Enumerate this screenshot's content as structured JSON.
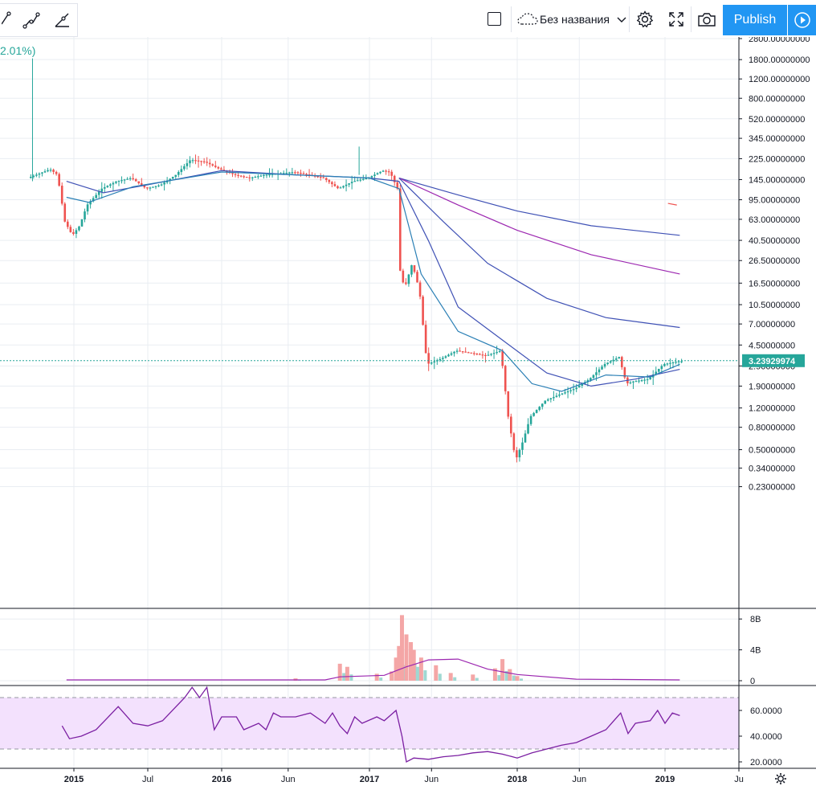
{
  "toolbar": {
    "layout_name": "Без названия",
    "publish_label": "Publish",
    "change_pct": "2.01%)",
    "icons": [
      "trend-line-icon",
      "path-icon",
      "ray-icon",
      "square-icon",
      "cloud-icon",
      "chevron-down-icon",
      "gear-icon",
      "fullscreen-icon",
      "camera-icon",
      "play-icon"
    ]
  },
  "colors": {
    "up": "#26a69a",
    "down": "#ef5350",
    "accent": "#2196f3",
    "ma_blue": "#3f51b5",
    "ma_purple": "#9c27b0",
    "rsi_fill": "#f3e1fd",
    "last_price_bg": "#26a69a"
  },
  "chart_data": [
    {
      "type": "candlestick",
      "scale": "log",
      "price_ticks": [
        "2800.00000000",
        "1800.00000000",
        "1200.00000000",
        "800.00000000",
        "520.00000000",
        "345.00000000",
        "225.00000000",
        "145.00000000",
        "95.00000000",
        "63.00000000",
        "40.50000000",
        "26.50000000",
        "16.50000000",
        "10.50000000",
        "7.00000000",
        "4.50000000",
        "2.90000000",
        "1.90000000",
        "1.20000000",
        "0.80000000",
        "0.50000000",
        "0.34000000",
        "0.23000000"
      ],
      "time_ticks": [
        "2015",
        "Jul",
        "2016",
        "Jun",
        "2017",
        "Jun",
        "2018",
        "Jun",
        "2019",
        "Ju"
      ],
      "last_price": "3.23929974",
      "ylim": [
        0.2,
        3000
      ],
      "grid": true,
      "price_series": [
        [
          2014.7,
          150
        ],
        [
          2014.85,
          180
        ],
        [
          2014.9,
          160
        ],
        [
          2014.95,
          60
        ],
        [
          2015.0,
          45
        ],
        [
          2015.05,
          55
        ],
        [
          2015.1,
          85
        ],
        [
          2015.2,
          120
        ],
        [
          2015.3,
          140
        ],
        [
          2015.4,
          150
        ],
        [
          2015.5,
          120
        ],
        [
          2015.6,
          130
        ],
        [
          2015.7,
          160
        ],
        [
          2015.8,
          220
        ],
        [
          2015.9,
          210
        ],
        [
          2016.0,
          180
        ],
        [
          2016.1,
          160
        ],
        [
          2016.2,
          150
        ],
        [
          2016.3,
          160
        ],
        [
          2016.4,
          165
        ],
        [
          2016.5,
          170
        ],
        [
          2016.6,
          160
        ],
        [
          2016.7,
          150
        ],
        [
          2016.8,
          120
        ],
        [
          2016.9,
          140
        ],
        [
          2017.0,
          150
        ],
        [
          2017.1,
          175
        ],
        [
          2017.15,
          170
        ],
        [
          2017.2,
          120
        ],
        [
          2017.22,
          20
        ],
        [
          2017.25,
          15
        ],
        [
          2017.3,
          25
        ],
        [
          2017.35,
          14
        ],
        [
          2017.4,
          3.0
        ],
        [
          2017.5,
          3.4
        ],
        [
          2017.6,
          4.0
        ],
        [
          2017.7,
          3.8
        ],
        [
          2017.8,
          3.6
        ],
        [
          2017.9,
          4.0
        ],
        [
          2017.95,
          1.0
        ],
        [
          2018.0,
          0.4
        ],
        [
          2018.05,
          0.6
        ],
        [
          2018.1,
          1.0
        ],
        [
          2018.2,
          1.4
        ],
        [
          2018.3,
          1.6
        ],
        [
          2018.4,
          1.8
        ],
        [
          2018.5,
          2.2
        ],
        [
          2018.6,
          3.0
        ],
        [
          2018.7,
          3.5
        ],
        [
          2018.75,
          2.0
        ],
        [
          2018.8,
          2.1
        ],
        [
          2018.9,
          2.2
        ],
        [
          2019.0,
          3.0
        ],
        [
          2019.1,
          3.2
        ]
      ],
      "moving_averages": [
        {
          "color": "#3f51b5",
          "points": [
            [
              2017.2,
              150
            ],
            [
              2017.6,
              105
            ],
            [
              2018.0,
              75
            ],
            [
              2018.5,
              55
            ],
            [
              2019.1,
              45
            ]
          ]
        },
        {
          "color": "#9c27b0",
          "points": [
            [
              2017.2,
              150
            ],
            [
              2017.6,
              85
            ],
            [
              2018.0,
              50
            ],
            [
              2018.5,
              30
            ],
            [
              2019.1,
              20
            ]
          ]
        },
        {
          "color": "#3f51b5",
          "points": [
            [
              2017.2,
              150
            ],
            [
              2017.5,
              60
            ],
            [
              2017.8,
              25
            ],
            [
              2018.2,
              12
            ],
            [
              2018.6,
              8
            ],
            [
              2019.1,
              6.5
            ]
          ]
        },
        {
          "color": "#3f51b5",
          "points": [
            [
              2014.95,
              140
            ],
            [
              2015.2,
              110
            ],
            [
              2015.5,
              130
            ],
            [
              2016.0,
              175
            ],
            [
              2016.5,
              160
            ],
            [
              2017.0,
              150
            ],
            [
              2017.2,
              140
            ],
            [
              2017.4,
              40
            ],
            [
              2017.6,
              10
            ],
            [
              2017.9,
              5
            ],
            [
              2018.2,
              2.5
            ],
            [
              2018.5,
              1.9
            ],
            [
              2018.8,
              2.2
            ],
            [
              2019.1,
              2.7
            ]
          ]
        },
        {
          "color": "#2a7fb5",
          "points": [
            [
              2014.95,
              100
            ],
            [
              2015.1,
              90
            ],
            [
              2015.4,
              125
            ],
            [
              2016.0,
              170
            ],
            [
              2016.5,
              160
            ],
            [
              2017.0,
              150
            ],
            [
              2017.2,
              120
            ],
            [
              2017.35,
              20
            ],
            [
              2017.6,
              6
            ],
            [
              2017.9,
              4
            ],
            [
              2018.1,
              2
            ],
            [
              2018.3,
              1.7
            ],
            [
              2018.6,
              2.4
            ],
            [
              2018.9,
              2.3
            ],
            [
              2019.1,
              3.0
            ]
          ]
        }
      ],
      "extra_segment": [
        [
          2019.02,
          88
        ],
        [
          2019.08,
          85
        ]
      ]
    },
    {
      "type": "bar",
      "name": "volume",
      "ticks": [
        "8B",
        "4B",
        "0"
      ],
      "ylim": [
        0,
        9
      ],
      "bars": [
        [
          2016.5,
          0.3
        ],
        [
          2016.8,
          2.2
        ],
        [
          2016.85,
          1.8
        ],
        [
          2017.05,
          0.9
        ],
        [
          2017.15,
          1.2
        ],
        [
          2017.18,
          3.0
        ],
        [
          2017.2,
          4.5
        ],
        [
          2017.22,
          8.5
        ],
        [
          2017.25,
          6.0
        ],
        [
          2017.28,
          5.0
        ],
        [
          2017.3,
          4.0
        ],
        [
          2017.35,
          3.0
        ],
        [
          2017.45,
          2.0
        ],
        [
          2017.55,
          1.0
        ],
        [
          2017.7,
          0.8
        ],
        [
          2017.85,
          1.6
        ],
        [
          2017.9,
          2.8
        ],
        [
          2017.95,
          1.5
        ],
        [
          2018.0,
          0.6
        ]
      ],
      "moving_average": [
        [
          2014.95,
          0.1
        ],
        [
          2016.7,
          0.1
        ],
        [
          2016.8,
          0.5
        ],
        [
          2017.1,
          0.7
        ],
        [
          2017.25,
          1.8
        ],
        [
          2017.4,
          2.7
        ],
        [
          2017.6,
          2.8
        ],
        [
          2017.8,
          1.5
        ],
        [
          2018.0,
          0.8
        ],
        [
          2018.4,
          0.2
        ],
        [
          2019.1,
          0.1
        ]
      ]
    },
    {
      "type": "line",
      "name": "rsi",
      "ticks": [
        "60.0000",
        "40.0000",
        "20.0000"
      ],
      "ylim": [
        15,
        80
      ],
      "bands": [
        70,
        30
      ],
      "values": [
        [
          2014.92,
          48
        ],
        [
          2014.97,
          38
        ],
        [
          2015.05,
          40
        ],
        [
          2015.15,
          45
        ],
        [
          2015.3,
          63
        ],
        [
          2015.4,
          50
        ],
        [
          2015.5,
          48
        ],
        [
          2015.6,
          52
        ],
        [
          2015.65,
          58
        ],
        [
          2015.75,
          70
        ],
        [
          2015.8,
          78
        ],
        [
          2015.85,
          70
        ],
        [
          2015.9,
          78
        ],
        [
          2015.95,
          45
        ],
        [
          2016.0,
          55
        ],
        [
          2016.1,
          55
        ],
        [
          2016.15,
          45
        ],
        [
          2016.25,
          50
        ],
        [
          2016.3,
          45
        ],
        [
          2016.35,
          58
        ],
        [
          2016.4,
          55
        ],
        [
          2016.5,
          55
        ],
        [
          2016.6,
          58
        ],
        [
          2016.7,
          50
        ],
        [
          2016.75,
          58
        ],
        [
          2016.8,
          48
        ],
        [
          2016.85,
          42
        ],
        [
          2016.9,
          55
        ],
        [
          2016.95,
          50
        ],
        [
          2017.05,
          55
        ],
        [
          2017.1,
          52
        ],
        [
          2017.18,
          60
        ],
        [
          2017.22,
          40
        ],
        [
          2017.25,
          20
        ],
        [
          2017.3,
          23
        ],
        [
          2017.4,
          22
        ],
        [
          2017.5,
          24
        ],
        [
          2017.6,
          25
        ],
        [
          2017.7,
          27
        ],
        [
          2017.8,
          28
        ],
        [
          2017.9,
          26
        ],
        [
          2018.0,
          23
        ],
        [
          2018.1,
          27
        ],
        [
          2018.2,
          30
        ],
        [
          2018.3,
          33
        ],
        [
          2018.4,
          35
        ],
        [
          2018.5,
          40
        ],
        [
          2018.6,
          45
        ],
        [
          2018.7,
          58
        ],
        [
          2018.75,
          42
        ],
        [
          2018.8,
          50
        ],
        [
          2018.9,
          52
        ],
        [
          2018.95,
          60
        ],
        [
          2019.0,
          50
        ],
        [
          2019.05,
          58
        ],
        [
          2019.1,
          56
        ]
      ]
    }
  ]
}
